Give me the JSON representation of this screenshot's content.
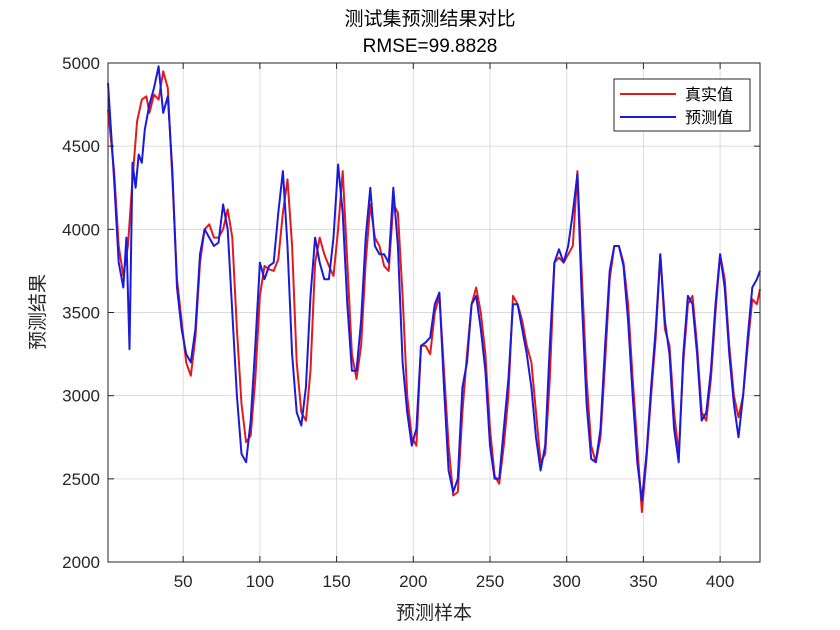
{
  "chart_data": {
    "type": "line",
    "title": "测试集预测结果对比",
    "subtitle": "RMSE=99.8828",
    "xlabel": "预测样本",
    "ylabel": "预测结果",
    "xlim": [
      1,
      426
    ],
    "ylim": [
      2000,
      5000
    ],
    "x_ticks": [
      50,
      100,
      150,
      200,
      250,
      300,
      350,
      400
    ],
    "y_ticks": [
      2000,
      2500,
      3000,
      3500,
      4000,
      4500,
      5000
    ],
    "grid": true,
    "legend_position": "top-right",
    "series": [
      {
        "name": "真实值",
        "color": "#e31a1c",
        "points": [
          [
            1,
            4720
          ],
          [
            5,
            4350
          ],
          [
            8,
            3900
          ],
          [
            11,
            3720
          ],
          [
            14,
            3900
          ],
          [
            17,
            4300
          ],
          [
            20,
            4650
          ],
          [
            23,
            4780
          ],
          [
            26,
            4800
          ],
          [
            28,
            4700
          ],
          [
            31,
            4810
          ],
          [
            34,
            4780
          ],
          [
            37,
            4950
          ],
          [
            40,
            4850
          ],
          [
            43,
            4300
          ],
          [
            46,
            3700
          ],
          [
            49,
            3450
          ],
          [
            52,
            3200
          ],
          [
            55,
            3120
          ],
          [
            58,
            3350
          ],
          [
            61,
            3800
          ],
          [
            64,
            4000
          ],
          [
            67,
            4030
          ],
          [
            70,
            3950
          ],
          [
            73,
            3950
          ],
          [
            76,
            4000
          ],
          [
            79,
            4120
          ],
          [
            82,
            3950
          ],
          [
            85,
            3400
          ],
          [
            88,
            2950
          ],
          [
            91,
            2720
          ],
          [
            94,
            2760
          ],
          [
            97,
            3100
          ],
          [
            100,
            3600
          ],
          [
            103,
            3780
          ],
          [
            106,
            3760
          ],
          [
            109,
            3750
          ],
          [
            112,
            3820
          ],
          [
            115,
            4100
          ],
          [
            118,
            4300
          ],
          [
            121,
            3900
          ],
          [
            124,
            3200
          ],
          [
            127,
            2900
          ],
          [
            130,
            2850
          ],
          [
            133,
            3150
          ],
          [
            136,
            3800
          ],
          [
            139,
            3950
          ],
          [
            142,
            3850
          ],
          [
            145,
            3780
          ],
          [
            148,
            3720
          ],
          [
            151,
            4000
          ],
          [
            154,
            4350
          ],
          [
            157,
            3800
          ],
          [
            160,
            3250
          ],
          [
            163,
            3100
          ],
          [
            166,
            3300
          ],
          [
            169,
            3800
          ],
          [
            172,
            4150
          ],
          [
            175,
            3950
          ],
          [
            178,
            3900
          ],
          [
            181,
            3780
          ],
          [
            184,
            3750
          ],
          [
            187,
            4150
          ],
          [
            190,
            4100
          ],
          [
            193,
            3600
          ],
          [
            196,
            3000
          ],
          [
            199,
            2750
          ],
          [
            202,
            2700
          ],
          [
            205,
            3300
          ],
          [
            208,
            3300
          ],
          [
            211,
            3250
          ],
          [
            214,
            3500
          ],
          [
            217,
            3600
          ],
          [
            220,
            3150
          ],
          [
            223,
            2700
          ],
          [
            226,
            2400
          ],
          [
            229,
            2420
          ],
          [
            232,
            2900
          ],
          [
            235,
            3250
          ],
          [
            238,
            3550
          ],
          [
            241,
            3650
          ],
          [
            244,
            3500
          ],
          [
            247,
            3250
          ],
          [
            250,
            2800
          ],
          [
            253,
            2520
          ],
          [
            256,
            2470
          ],
          [
            259,
            2700
          ],
          [
            262,
            3000
          ],
          [
            265,
            3600
          ],
          [
            268,
            3550
          ],
          [
            271,
            3450
          ],
          [
            274,
            3300
          ],
          [
            277,
            3200
          ],
          [
            280,
            2900
          ],
          [
            283,
            2600
          ],
          [
            286,
            2650
          ],
          [
            289,
            3100
          ],
          [
            292,
            3800
          ],
          [
            295,
            3830
          ],
          [
            298,
            3800
          ],
          [
            301,
            3850
          ],
          [
            304,
            3900
          ],
          [
            307,
            4350
          ],
          [
            310,
            3700
          ],
          [
            313,
            3100
          ],
          [
            316,
            2700
          ],
          [
            319,
            2600
          ],
          [
            322,
            2750
          ],
          [
            325,
            3200
          ],
          [
            328,
            3700
          ],
          [
            331,
            3900
          ],
          [
            334,
            3900
          ],
          [
            337,
            3800
          ],
          [
            340,
            3550
          ],
          [
            343,
            3100
          ],
          [
            346,
            2700
          ],
          [
            349,
            2300
          ],
          [
            352,
            2620
          ],
          [
            355,
            3000
          ],
          [
            358,
            3350
          ],
          [
            361,
            3850
          ],
          [
            364,
            3400
          ],
          [
            367,
            3300
          ],
          [
            370,
            2900
          ],
          [
            373,
            2650
          ],
          [
            376,
            3200
          ],
          [
            379,
            3550
          ],
          [
            382,
            3600
          ],
          [
            385,
            3300
          ],
          [
            388,
            2900
          ],
          [
            391,
            2850
          ],
          [
            394,
            3100
          ],
          [
            397,
            3500
          ],
          [
            400,
            3850
          ],
          [
            403,
            3700
          ],
          [
            406,
            3300
          ],
          [
            409,
            3000
          ],
          [
            412,
            2870
          ],
          [
            415,
            3000
          ],
          [
            418,
            3300
          ],
          [
            421,
            3580
          ],
          [
            424,
            3550
          ],
          [
            426,
            3640
          ]
        ]
      },
      {
        "name": "预测值",
        "color": "#1a1adb",
        "points": [
          [
            1,
            4880
          ],
          [
            5,
            4300
          ],
          [
            8,
            3800
          ],
          [
            11,
            3650
          ],
          [
            13,
            3950
          ],
          [
            15,
            3280
          ],
          [
            17,
            4400
          ],
          [
            19,
            4250
          ],
          [
            21,
            4450
          ],
          [
            23,
            4400
          ],
          [
            25,
            4600
          ],
          [
            28,
            4750
          ],
          [
            31,
            4850
          ],
          [
            34,
            4980
          ],
          [
            37,
            4700
          ],
          [
            40,
            4800
          ],
          [
            43,
            4350
          ],
          [
            46,
            3650
          ],
          [
            49,
            3400
          ],
          [
            52,
            3250
          ],
          [
            55,
            3200
          ],
          [
            58,
            3400
          ],
          [
            61,
            3850
          ],
          [
            64,
            4000
          ],
          [
            67,
            3950
          ],
          [
            70,
            3900
          ],
          [
            73,
            3920
          ],
          [
            76,
            4150
          ],
          [
            79,
            4000
          ],
          [
            82,
            3500
          ],
          [
            85,
            3000
          ],
          [
            88,
            2650
          ],
          [
            91,
            2600
          ],
          [
            94,
            2850
          ],
          [
            97,
            3300
          ],
          [
            100,
            3800
          ],
          [
            103,
            3700
          ],
          [
            106,
            3780
          ],
          [
            109,
            3800
          ],
          [
            112,
            4100
          ],
          [
            115,
            4350
          ],
          [
            118,
            3900
          ],
          [
            121,
            3250
          ],
          [
            124,
            2900
          ],
          [
            127,
            2820
          ],
          [
            130,
            3050
          ],
          [
            133,
            3600
          ],
          [
            136,
            3950
          ],
          [
            139,
            3800
          ],
          [
            142,
            3700
          ],
          [
            145,
            3700
          ],
          [
            148,
            3950
          ],
          [
            151,
            4390
          ],
          [
            154,
            4100
          ],
          [
            157,
            3550
          ],
          [
            160,
            3150
          ],
          [
            163,
            3150
          ],
          [
            166,
            3450
          ],
          [
            169,
            3950
          ],
          [
            172,
            4250
          ],
          [
            175,
            3900
          ],
          [
            178,
            3850
          ],
          [
            181,
            3850
          ],
          [
            184,
            3800
          ],
          [
            187,
            4250
          ],
          [
            190,
            3900
          ],
          [
            193,
            3200
          ],
          [
            196,
            2900
          ],
          [
            199,
            2700
          ],
          [
            202,
            2800
          ],
          [
            205,
            3300
          ],
          [
            208,
            3320
          ],
          [
            211,
            3350
          ],
          [
            214,
            3550
          ],
          [
            217,
            3620
          ],
          [
            220,
            3050
          ],
          [
            223,
            2550
          ],
          [
            226,
            2420
          ],
          [
            229,
            2500
          ],
          [
            232,
            3050
          ],
          [
            235,
            3200
          ],
          [
            238,
            3550
          ],
          [
            241,
            3600
          ],
          [
            244,
            3400
          ],
          [
            247,
            3150
          ],
          [
            250,
            2700
          ],
          [
            253,
            2500
          ],
          [
            256,
            2500
          ],
          [
            259,
            2800
          ],
          [
            262,
            3100
          ],
          [
            265,
            3550
          ],
          [
            268,
            3550
          ],
          [
            271,
            3400
          ],
          [
            274,
            3250
          ],
          [
            277,
            3050
          ],
          [
            280,
            2750
          ],
          [
            283,
            2550
          ],
          [
            286,
            2700
          ],
          [
            289,
            3300
          ],
          [
            292,
            3800
          ],
          [
            295,
            3880
          ],
          [
            298,
            3800
          ],
          [
            301,
            3900
          ],
          [
            304,
            4100
          ],
          [
            307,
            4330
          ],
          [
            310,
            3550
          ],
          [
            313,
            2950
          ],
          [
            316,
            2620
          ],
          [
            319,
            2600
          ],
          [
            322,
            2800
          ],
          [
            325,
            3300
          ],
          [
            328,
            3750
          ],
          [
            331,
            3900
          ],
          [
            334,
            3900
          ],
          [
            337,
            3780
          ],
          [
            340,
            3450
          ],
          [
            343,
            3000
          ],
          [
            346,
            2600
          ],
          [
            349,
            2370
          ],
          [
            352,
            2650
          ],
          [
            355,
            3050
          ],
          [
            358,
            3400
          ],
          [
            361,
            3850
          ],
          [
            364,
            3450
          ],
          [
            367,
            3250
          ],
          [
            370,
            2800
          ],
          [
            373,
            2600
          ],
          [
            376,
            3250
          ],
          [
            379,
            3600
          ],
          [
            382,
            3550
          ],
          [
            385,
            3250
          ],
          [
            388,
            2850
          ],
          [
            391,
            2900
          ],
          [
            394,
            3150
          ],
          [
            397,
            3550
          ],
          [
            400,
            3850
          ],
          [
            403,
            3650
          ],
          [
            406,
            3250
          ],
          [
            409,
            2950
          ],
          [
            412,
            2750
          ],
          [
            415,
            3000
          ],
          [
            418,
            3350
          ],
          [
            421,
            3650
          ],
          [
            424,
            3700
          ],
          [
            426,
            3750
          ]
        ]
      }
    ]
  }
}
